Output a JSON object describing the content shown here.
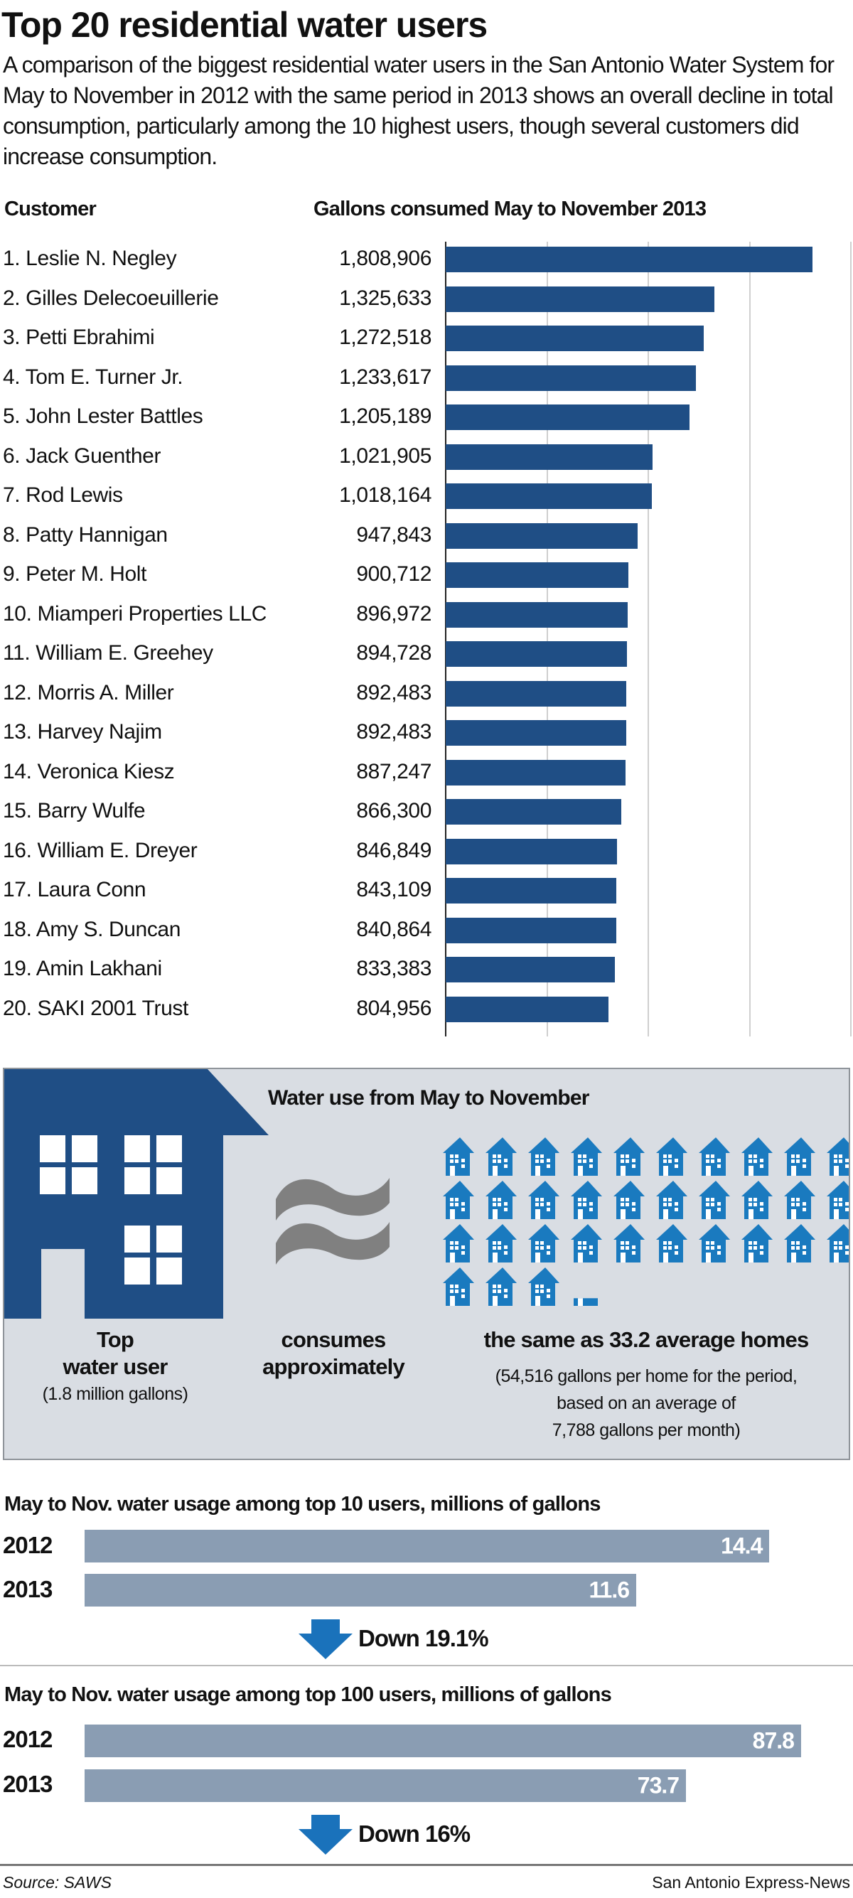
{
  "title": "Top 20 residential water users",
  "intro": "A comparison of the biggest residential water users in the San Antonio Water System for May to November in 2012 with the same period in 2013 shows an overall decline in total consumption, particularly among the 10 highest users, though several customers did increase consumption.",
  "colors": {
    "bar": "#1f4e85",
    "comparison_bar": "#8a9db3",
    "arrow": "#1a72bb",
    "small_house": "#1a7abf",
    "infobox_bg": "#d9dde3"
  },
  "chart_data": [
    {
      "type": "bar",
      "orientation": "horizontal",
      "category_header": "Customer",
      "title": "Gallons consumed May to November 2013",
      "xlim": [
        0,
        2000000
      ],
      "grid": true,
      "categories": [
        "1.  Leslie N. Negley",
        "2.  Gilles Delecoeuillerie",
        "3.  Petti Ebrahimi",
        "4.  Tom E. Turner Jr.",
        "5.  John Lester Battles",
        "6.  Jack Guenther",
        "7.  Rod Lewis",
        "8.  Patty Hannigan",
        "9.  Peter M. Holt",
        "10. Miamperi Properties LLC",
        "11. William E. Greehey",
        "12. Morris A. Miller",
        "13. Harvey Najim",
        "14. Veronica Kiesz",
        "15. Barry Wulfe",
        "16. William E. Dreyer",
        "17. Laura Conn",
        "18. Amy S. Duncan",
        "19. Amin Lakhani",
        "20. SAKI 2001 Trust"
      ],
      "labels": [
        "1,808,906",
        "1,325,633",
        "1,272,518",
        "1,233,617",
        "1,205,189",
        "1,021,905",
        "1,018,164",
        "947,843",
        "900,712",
        "896,972",
        "894,728",
        "892,483",
        "892,483",
        "887,247",
        "866,300",
        "846,849",
        "843,109",
        "840,864",
        "833,383",
        "804,956"
      ],
      "values": [
        1808906,
        1325633,
        1272518,
        1233617,
        1205189,
        1021905,
        1018164,
        947843,
        900712,
        896972,
        894728,
        892483,
        892483,
        887247,
        866300,
        846849,
        843109,
        840864,
        833383,
        804956
      ]
    },
    {
      "type": "bar",
      "orientation": "horizontal",
      "title": "May to Nov. water usage among top 10 users, millions of gallons",
      "categories": [
        "2012",
        "2013"
      ],
      "values": [
        14.4,
        11.6
      ],
      "change": "Down 19.1%"
    },
    {
      "type": "bar",
      "orientation": "horizontal",
      "title": "May to Nov. water usage among top 100 users, millions of gallons",
      "categories": [
        "2012",
        "2013"
      ],
      "values": [
        87.8,
        73.7
      ],
      "change": "Down 16%"
    }
  ],
  "infobox": {
    "title": "Water use from May to November",
    "homes_equivalent": 33.2,
    "top_line1": "Top",
    "top_line2": "water user",
    "top_line3": "(1.8 million gallons)",
    "mid_line1": "consumes",
    "mid_line2": "approximately",
    "right_line1": "the same as 33.2 average homes",
    "right_line2": "(54,516 gallons per home for the period,",
    "right_line3": "based on an average of",
    "right_line4": "7,788 gallons per month)"
  },
  "footer": {
    "source": "Source: SAWS",
    "credit": "San Antonio Express-News"
  }
}
